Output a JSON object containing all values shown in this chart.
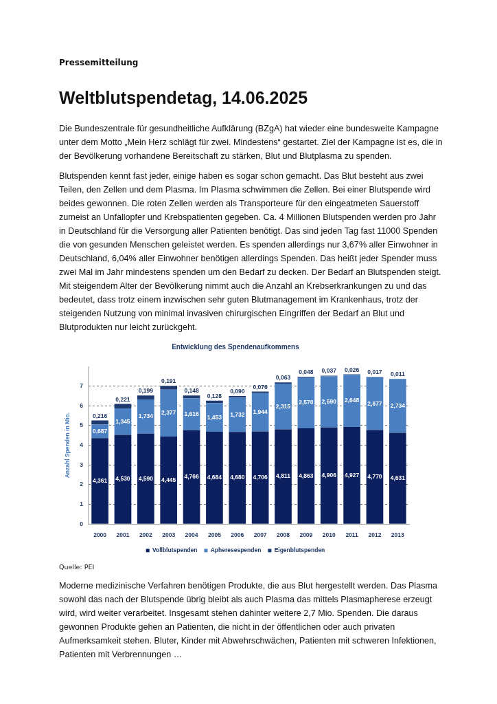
{
  "chart_data": {
    "type": "bar",
    "title": "Entwicklung des Spendenaufkommens",
    "ylabel": "Anzahl Spenden in Mio.",
    "categories": [
      "2000",
      "2001",
      "2002",
      "2003",
      "2004",
      "2005",
      "2006",
      "2007",
      "2008",
      "2009",
      "2010",
      "2011",
      "2012",
      "2013"
    ],
    "series": [
      {
        "name": "Vollblutspenden",
        "color": "#0c1f5e",
        "values": [
          4.361,
          4.53,
          4.59,
          4.445,
          4.766,
          4.684,
          4.68,
          4.706,
          4.811,
          4.863,
          4.906,
          4.927,
          4.77,
          4.631
        ],
        "value_labels": [
          "4,361",
          "4,530",
          "4,590",
          "4,445",
          "4,766",
          "4,684",
          "4,680",
          "4,706",
          "4,811",
          "4,863",
          "4,906",
          "4,927",
          "4,770",
          "4,631"
        ]
      },
      {
        "name": "Apheresespenden",
        "color": "#4a7fc1",
        "values": [
          0.687,
          1.345,
          1.734,
          2.377,
          1.616,
          1.453,
          1.732,
          1.944,
          2.315,
          2.57,
          2.59,
          2.648,
          2.677,
          2.734
        ],
        "value_labels": [
          "0,687",
          "1,345",
          "1,734",
          "2,377",
          "1,616",
          "1,453",
          "1,732",
          "1,944",
          "2,315",
          "2,570",
          "2,590",
          "2,648",
          "2,677",
          "2,734"
        ]
      },
      {
        "name": "Eigenblutspenden",
        "color": "#1f3a6e",
        "values": [
          0.216,
          0.221,
          0.199,
          0.191,
          0.148,
          0.128,
          0.09,
          0.076,
          0.063,
          0.048,
          0.037,
          0.026,
          0.017,
          0.011
        ],
        "value_labels": [
          "0,216",
          "0,221",
          "0,199",
          "0,191",
          "0,148",
          "0,128",
          "0,090",
          "0,076",
          "0,063",
          "0,048",
          "0,037",
          "0,026",
          "0,017",
          "0,011"
        ]
      }
    ],
    "stacked": true,
    "ylim": [
      0,
      8
    ],
    "yticks": [
      0,
      1,
      2,
      3,
      4,
      5,
      6,
      7
    ],
    "grid": "y",
    "legend": "bottom",
    "annotations": [
      "Pressemitteilung",
      "Weltblutspendetag, 14.06.2025",
      "Die Bundeszentrale für gesundheitliche Aufklärung (BZgA) hat wieder eine bundesweite Kampagne unter dem Motto „Mein Herz schlägt für zwei. Mindestens“ gestartet. Ziel der Kampagne ist es, die in der Bevölkerung vorhandene Bereitschaft zu stärken, Blut und Blutplasma zu spenden.",
      "Blutspenden kennt fast jeder, einige haben es sogar schon gemacht. Das Blut besteht aus zwei Teilen, den Zellen und dem Plasma. Im Plasma schwimmen die Zellen. Bei einer Blutspende wird beides gewonnen. Die roten Zellen werden als Transporteure für den eingeatmeten Sauerstoff zumeist an Unfallopfer und Krebspatienten gegeben. Ca. 4 Millionen Blutspenden werden pro Jahr in Deutschland für die Versorgung aller Patienten benötigt. Das sind jeden Tag fast 11000 Spenden die von gesunden Menschen geleistet werden. Es spenden allerdings nur 3,67% aller Einwohner in Deutschland, 6,04% aller Einwohner benötigen allerdings Spenden. Das heißt jeder Spender muss zwei Mal im Jahr mindestens spenden um den Bedarf zu decken. Der Bedarf an Blutspenden steigt. Mit steigendem Alter der Bevölkerung nimmt auch die Anzahl an Krebserkrankungen zu und das bedeutet, dass trotz einem inzwischen sehr guten Blutmanagement im Krankenhaus, trotz der steigenden Nutzung von minimal invasiven chirurgischen Eingriffen der Bedarf an Blut und Blutprodukten nur leicht zurückgeht.",
      "Quelle: PEI",
      "Moderne medizinische Verfahren benötigen Produkte, die aus Blut hergestellt werden. Das Plasma sowohl das nach der Blutspende übrig bleibt als auch Plasma das mittels Plasmapherese erzeugt wird, wird weiter verarbeitet. Insgesamt stehen dahinter weitere 2,7 Mio. Spenden. Die daraus gewonnen Produkte gehen an Patienten, die nicht in der öffentlichen oder auch privaten Aufmerksamkeit stehen. Bluter, Kinder mit Abwehrschwächen, Patienten mit schweren Infektionen, Patienten mit Verbrennungen …"
    ]
  }
}
